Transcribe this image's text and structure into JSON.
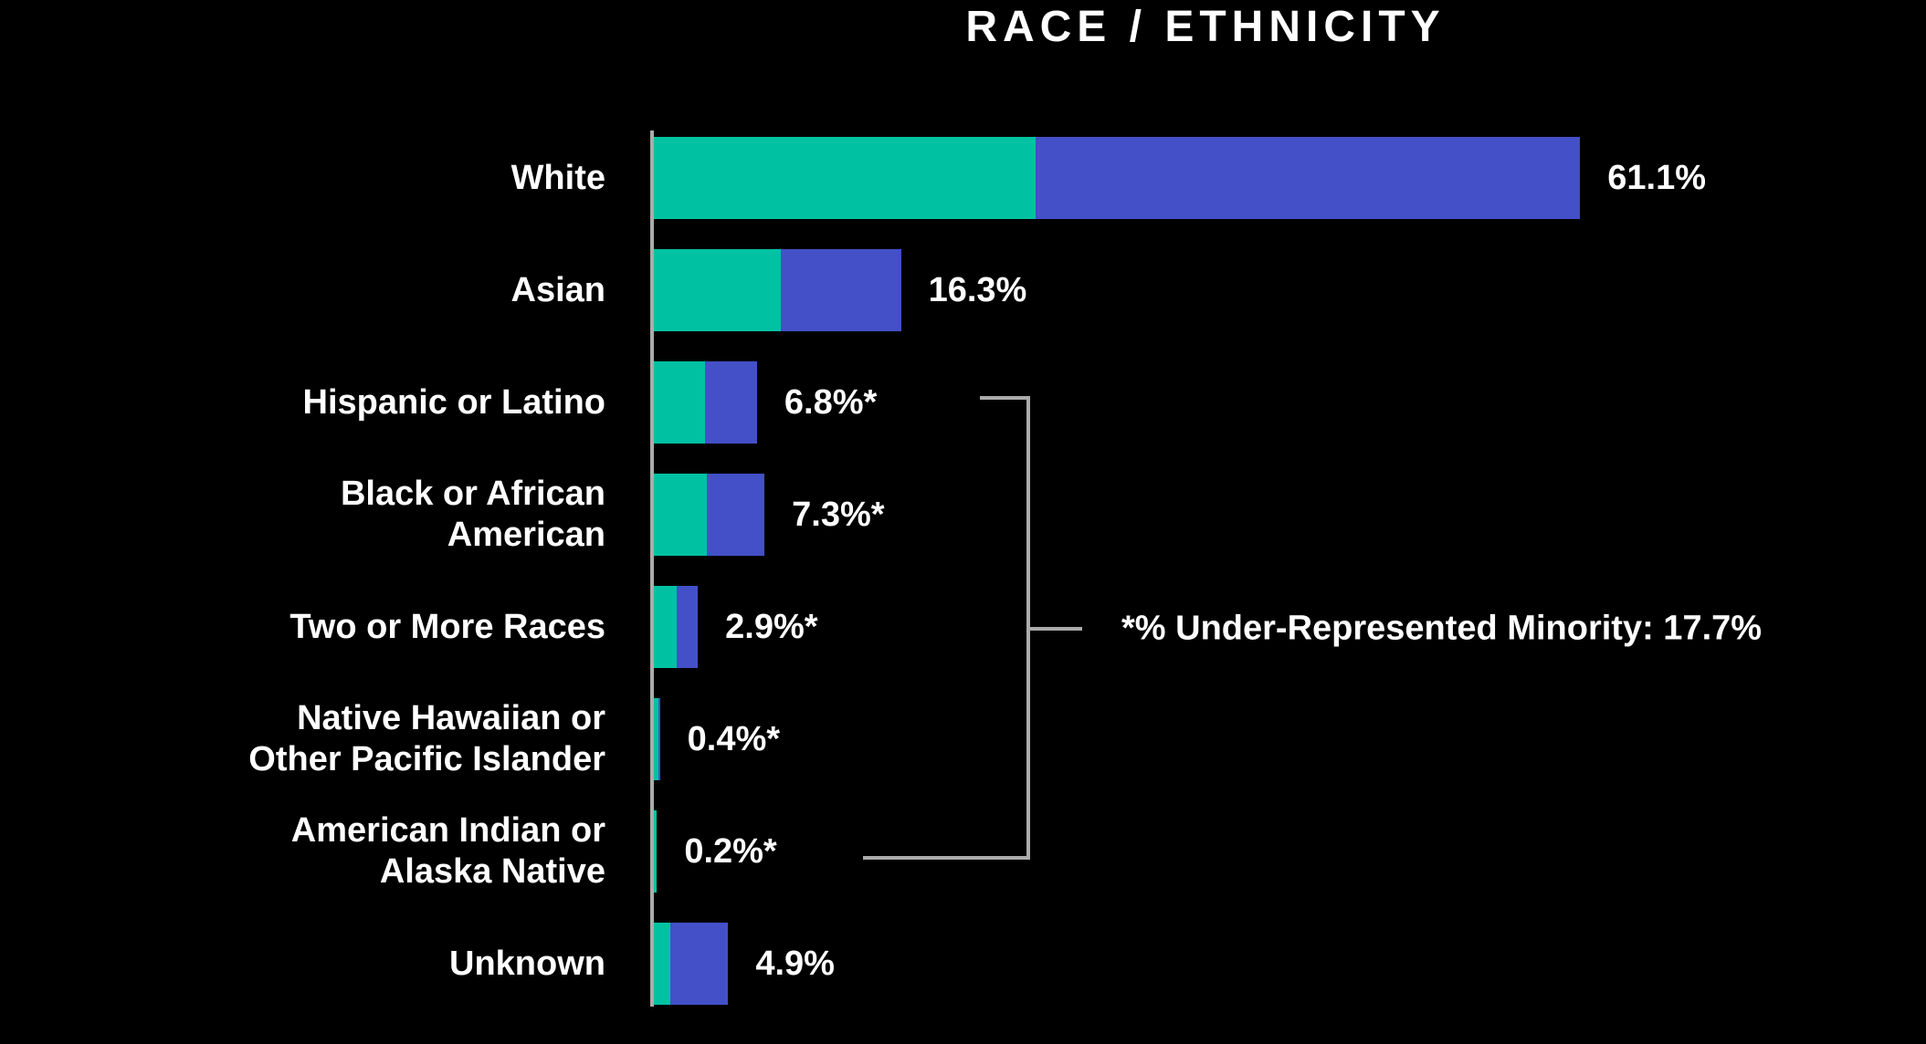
{
  "chart_data": {
    "type": "bar",
    "orientation": "horizontal",
    "title": "RACE / ETHNICITY",
    "unit": "%",
    "stacked": true,
    "grid": false,
    "legend": false,
    "colors": {
      "segment_teal": "#00C2A3",
      "segment_blue": "#4350C8",
      "axis_and_bracket": "#ABABAB",
      "text": "#FFFFFF",
      "background": "#000000"
    },
    "bars": [
      {
        "label": "White",
        "value": 61.1,
        "display_value": "61.1%",
        "starred": false,
        "segments": {
          "teal": 25.2,
          "blue": 35.9
        }
      },
      {
        "label": "Asian",
        "value": 16.3,
        "display_value": "16.3%",
        "starred": false,
        "segments": {
          "teal": 8.4,
          "blue": 7.9
        }
      },
      {
        "label": "Hispanic or Latino",
        "value": 6.8,
        "display_value": "6.8%*",
        "starred": true,
        "segments": {
          "teal": 3.4,
          "blue": 3.4
        }
      },
      {
        "label": "Black or African\nAmerican",
        "value": 7.3,
        "display_value": "7.3%*",
        "starred": true,
        "segments": {
          "teal": 3.5,
          "blue": 3.8
        }
      },
      {
        "label": "Two or More Races",
        "value": 2.9,
        "display_value": "2.9%*",
        "starred": true,
        "segments": {
          "teal": 1.5,
          "blue": 1.4
        }
      },
      {
        "label": "Native Hawaiian or\nOther Pacific Islander",
        "value": 0.4,
        "display_value": "0.4%*",
        "starred": true,
        "segments": {
          "teal": 0.3,
          "blue": 0.1
        }
      },
      {
        "label": "American Indian or\nAlaska Native",
        "value": 0.2,
        "display_value": "0.2%*",
        "starred": true,
        "segments": {
          "teal": 0.2,
          "blue": 0.0
        }
      },
      {
        "label": "Unknown",
        "value": 4.9,
        "display_value": "4.9%",
        "starred": false,
        "segments": {
          "teal": 1.1,
          "blue": 3.8
        }
      }
    ],
    "annotation": {
      "text": "*% Under-Represented Minority: 17.7%",
      "value": 17.7
    },
    "xlim": [
      0,
      65
    ]
  }
}
